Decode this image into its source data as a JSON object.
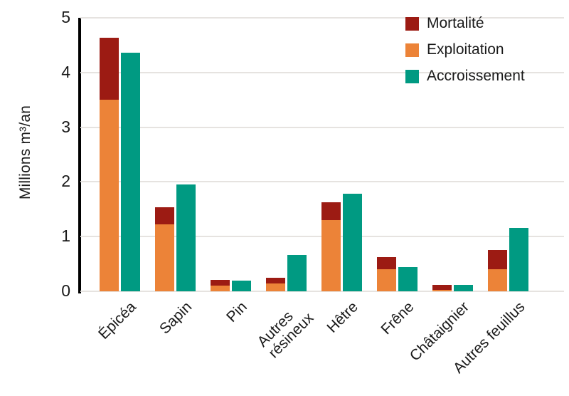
{
  "chart_data": {
    "type": "bar",
    "title": "",
    "ylabel": "Millions m³/an",
    "xlabel": "",
    "ylim": [
      0,
      5
    ],
    "yticks": [
      0,
      1,
      2,
      3,
      4,
      5
    ],
    "grid": "horizontal",
    "legend_position": "top-right",
    "bar_layout": "Exploitation and Mortalité stacked in one bar; Accroissement as separate adjacent bar",
    "categories": [
      "Épicéa",
      "Sapin",
      "Pin",
      "Autres\nrésineux",
      "Hêtre",
      "Frêne",
      "Châtaignier",
      "Autres feuillus"
    ],
    "series": [
      {
        "name": "Mortalité",
        "color": "#9C1B13",
        "stack": "top",
        "values": [
          1.14,
          0.31,
          0.1,
          0.11,
          0.33,
          0.22,
          0.1,
          0.36
        ]
      },
      {
        "name": "Exploitation",
        "color": "#EC8338",
        "stack": "bottom",
        "values": [
          3.5,
          1.22,
          0.11,
          0.14,
          1.3,
          0.41,
          0.02,
          0.4
        ]
      },
      {
        "name": "Accroissement",
        "color": "#009A82",
        "stack": null,
        "values": [
          4.36,
          1.95,
          0.19,
          0.66,
          1.79,
          0.44,
          0.12,
          1.16
        ]
      }
    ],
    "colors": {
      "axis": "#000000",
      "gridline": "#E6E3E0",
      "text": "#1A1A1A",
      "background": "#FFFFFF"
    }
  }
}
